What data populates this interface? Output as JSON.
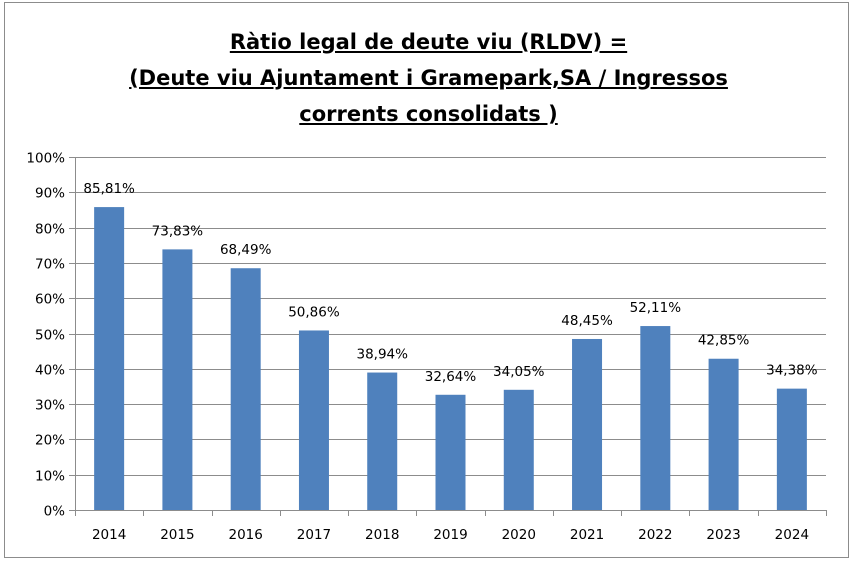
{
  "chart_data": {
    "type": "bar",
    "title_lines": [
      "Ràtio legal de  deute viu (RLDV) =",
      "(Deute viu Ajuntament i  Gramepark,SA / Ingressos",
      "corrents consolidats )"
    ],
    "categories": [
      "2014",
      "2015",
      "2016",
      "2017",
      "2018",
      "2019",
      "2020",
      "2021",
      "2022",
      "2023",
      "2024"
    ],
    "values": [
      85.81,
      73.83,
      68.49,
      50.86,
      38.94,
      32.64,
      34.05,
      48.45,
      52.11,
      42.85,
      34.38
    ],
    "value_labels": [
      "85,81%",
      "73,83%",
      "68,49%",
      "50,86%",
      "38,94%",
      "32,64%",
      "34,05%",
      "48,45%",
      "52,11%",
      "42,85%",
      "34,38%"
    ],
    "ylim": [
      0,
      100
    ],
    "yticks": [
      0,
      10,
      20,
      30,
      40,
      50,
      60,
      70,
      80,
      90,
      100
    ],
    "ytick_labels": [
      "0%",
      "10%",
      "20%",
      "30%",
      "40%",
      "50%",
      "60%",
      "70%",
      "80%",
      "90%",
      "100%"
    ],
    "xlabel": "",
    "ylabel": "",
    "grid": true,
    "legend": "none",
    "bar_color": "#4f81bd",
    "grid_color": "#8c8c8c"
  }
}
